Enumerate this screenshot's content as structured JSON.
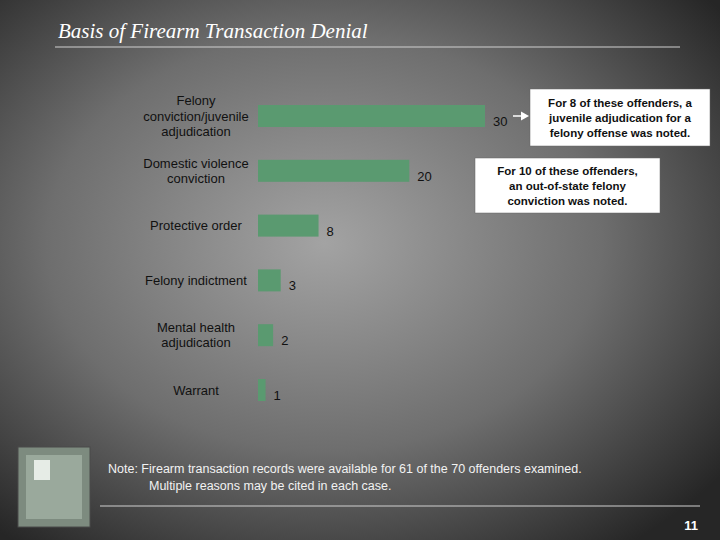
{
  "chart_data": {
    "type": "bar",
    "orientation": "horizontal",
    "title": "Basis of Firearm Transaction Denial",
    "categories": [
      "Felony\nconviction/juvenile\nadjudication",
      "Domestic violence\nconviction",
      "Protective order",
      "Felony indictment",
      "Mental health\nadjudication",
      "Warrant"
    ],
    "values": [
      30,
      20,
      8,
      3,
      2,
      1
    ],
    "color": "#5a9a70",
    "xlim": [
      0,
      30
    ],
    "data_labels": true,
    "tick_labels": false,
    "grid": false,
    "annotations": [
      "For 8 of these offenders, a\njuvenile adjudication for a\nfelony offense was noted.",
      "For 10 of these offenders,\nan out-of-state felony\nconviction was noted."
    ],
    "note": "Note:  Firearm transaction records were available for 61 of the 70 offenders examined.\nMultiple reasons may be cited in each case.",
    "page_number": "11"
  }
}
